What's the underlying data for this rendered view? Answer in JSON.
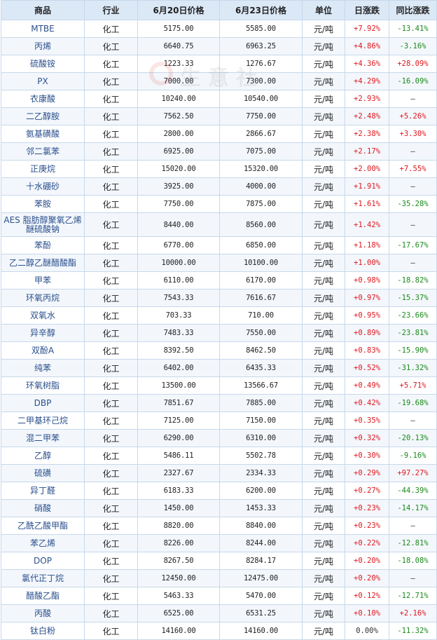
{
  "headers": [
    "商品",
    "行业",
    "6月20日价格",
    "6月23日价格",
    "单位",
    "日涨跌",
    "同比涨跌"
  ],
  "watermark": "生意社",
  "colors": {
    "up": "#e0161d",
    "down": "#1a8a1a",
    "header_bg": "#dbe8f6",
    "border": "#c7d8ea"
  },
  "rows": [
    {
      "name": "MTBE",
      "industry": "化工",
      "p1": "5175.00",
      "p2": "5585.00",
      "unit": "元/吨",
      "day": "+7.92%",
      "yoy": "-13.41%"
    },
    {
      "name": "丙烯",
      "industry": "化工",
      "p1": "6640.75",
      "p2": "6963.25",
      "unit": "元/吨",
      "day": "+4.86%",
      "yoy": "-3.16%"
    },
    {
      "name": "硫酸铵",
      "industry": "化工",
      "p1": "1223.33",
      "p2": "1276.67",
      "unit": "元/吨",
      "day": "+4.36%",
      "yoy": "+28.09%"
    },
    {
      "name": "PX",
      "industry": "化工",
      "p1": "7000.00",
      "p2": "7300.00",
      "unit": "元/吨",
      "day": "+4.29%",
      "yoy": "-16.09%"
    },
    {
      "name": "衣康酸",
      "industry": "化工",
      "p1": "10240.00",
      "p2": "10540.00",
      "unit": "元/吨",
      "day": "+2.93%",
      "yoy": "—"
    },
    {
      "name": "二乙醇胺",
      "industry": "化工",
      "p1": "7562.50",
      "p2": "7750.00",
      "unit": "元/吨",
      "day": "+2.48%",
      "yoy": "+5.26%"
    },
    {
      "name": "氨基磺酸",
      "industry": "化工",
      "p1": "2800.00",
      "p2": "2866.67",
      "unit": "元/吨",
      "day": "+2.38%",
      "yoy": "+3.30%"
    },
    {
      "name": "邻二氯苯",
      "industry": "化工",
      "p1": "6925.00",
      "p2": "7075.00",
      "unit": "元/吨",
      "day": "+2.17%",
      "yoy": "—"
    },
    {
      "name": "正庚烷",
      "industry": "化工",
      "p1": "15020.00",
      "p2": "15320.00",
      "unit": "元/吨",
      "day": "+2.00%",
      "yoy": "+7.55%"
    },
    {
      "name": "十水硼砂",
      "industry": "化工",
      "p1": "3925.00",
      "p2": "4000.00",
      "unit": "元/吨",
      "day": "+1.91%",
      "yoy": "—"
    },
    {
      "name": "苯胺",
      "industry": "化工",
      "p1": "7750.00",
      "p2": "7875.00",
      "unit": "元/吨",
      "day": "+1.61%",
      "yoy": "-35.28%"
    },
    {
      "name": "AES 脂肪醇聚氧乙烯醚硫酸钠",
      "industry": "化工",
      "p1": "8440.00",
      "p2": "8560.00",
      "unit": "元/吨",
      "day": "+1.42%",
      "yoy": "—"
    },
    {
      "name": "苯酚",
      "industry": "化工",
      "p1": "6770.00",
      "p2": "6850.00",
      "unit": "元/吨",
      "day": "+1.18%",
      "yoy": "-17.67%"
    },
    {
      "name": "乙二醇乙醚醋酸酯",
      "industry": "化工",
      "p1": "10000.00",
      "p2": "10100.00",
      "unit": "元/吨",
      "day": "+1.00%",
      "yoy": "—"
    },
    {
      "name": "甲苯",
      "industry": "化工",
      "p1": "6110.00",
      "p2": "6170.00",
      "unit": "元/吨",
      "day": "+0.98%",
      "yoy": "-18.82%"
    },
    {
      "name": "环氧丙烷",
      "industry": "化工",
      "p1": "7543.33",
      "p2": "7616.67",
      "unit": "元/吨",
      "day": "+0.97%",
      "yoy": "-15.37%"
    },
    {
      "name": "双氧水",
      "industry": "化工",
      "p1": "703.33",
      "p2": "710.00",
      "unit": "元/吨",
      "day": "+0.95%",
      "yoy": "-23.66%"
    },
    {
      "name": "异辛醇",
      "industry": "化工",
      "p1": "7483.33",
      "p2": "7550.00",
      "unit": "元/吨",
      "day": "+0.89%",
      "yoy": "-23.81%"
    },
    {
      "name": "双酚A",
      "industry": "化工",
      "p1": "8392.50",
      "p2": "8462.50",
      "unit": "元/吨",
      "day": "+0.83%",
      "yoy": "-15.90%"
    },
    {
      "name": "纯苯",
      "industry": "化工",
      "p1": "6402.00",
      "p2": "6435.33",
      "unit": "元/吨",
      "day": "+0.52%",
      "yoy": "-31.32%"
    },
    {
      "name": "环氧树脂",
      "industry": "化工",
      "p1": "13500.00",
      "p2": "13566.67",
      "unit": "元/吨",
      "day": "+0.49%",
      "yoy": "+5.71%"
    },
    {
      "name": "DBP",
      "industry": "化工",
      "p1": "7851.67",
      "p2": "7885.00",
      "unit": "元/吨",
      "day": "+0.42%",
      "yoy": "-19.68%"
    },
    {
      "name": "二甲基环己烷",
      "industry": "化工",
      "p1": "7125.00",
      "p2": "7150.00",
      "unit": "元/吨",
      "day": "+0.35%",
      "yoy": "—"
    },
    {
      "name": "混二甲苯",
      "industry": "化工",
      "p1": "6290.00",
      "p2": "6310.00",
      "unit": "元/吨",
      "day": "+0.32%",
      "yoy": "-20.13%"
    },
    {
      "name": "乙醇",
      "industry": "化工",
      "p1": "5486.11",
      "p2": "5502.78",
      "unit": "元/吨",
      "day": "+0.30%",
      "yoy": "-9.16%"
    },
    {
      "name": "硫磺",
      "industry": "化工",
      "p1": "2327.67",
      "p2": "2334.33",
      "unit": "元/吨",
      "day": "+0.29%",
      "yoy": "+97.27%"
    },
    {
      "name": "异丁醛",
      "industry": "化工",
      "p1": "6183.33",
      "p2": "6200.00",
      "unit": "元/吨",
      "day": "+0.27%",
      "yoy": "-44.39%"
    },
    {
      "name": "硝酸",
      "industry": "化工",
      "p1": "1450.00",
      "p2": "1453.33",
      "unit": "元/吨",
      "day": "+0.23%",
      "yoy": "-14.17%"
    },
    {
      "name": "乙酰乙酸甲酯",
      "industry": "化工",
      "p1": "8820.00",
      "p2": "8840.00",
      "unit": "元/吨",
      "day": "+0.23%",
      "yoy": "—"
    },
    {
      "name": "苯乙烯",
      "industry": "化工",
      "p1": "8226.00",
      "p2": "8244.00",
      "unit": "元/吨",
      "day": "+0.22%",
      "yoy": "-12.81%"
    },
    {
      "name": "DOP",
      "industry": "化工",
      "p1": "8267.50",
      "p2": "8284.17",
      "unit": "元/吨",
      "day": "+0.20%",
      "yoy": "-18.08%"
    },
    {
      "name": "氯代正丁烷",
      "industry": "化工",
      "p1": "12450.00",
      "p2": "12475.00",
      "unit": "元/吨",
      "day": "+0.20%",
      "yoy": "—"
    },
    {
      "name": "醋酸乙酯",
      "industry": "化工",
      "p1": "5463.33",
      "p2": "5470.00",
      "unit": "元/吨",
      "day": "+0.12%",
      "yoy": "-12.71%"
    },
    {
      "name": "丙酸",
      "industry": "化工",
      "p1": "6525.00",
      "p2": "6531.25",
      "unit": "元/吨",
      "day": "+0.10%",
      "yoy": "+2.16%"
    },
    {
      "name": "钛白粉",
      "industry": "化工",
      "p1": "14160.00",
      "p2": "14160.00",
      "unit": "元/吨",
      "day": "0.00%",
      "yoy": "-11.32%"
    }
  ]
}
